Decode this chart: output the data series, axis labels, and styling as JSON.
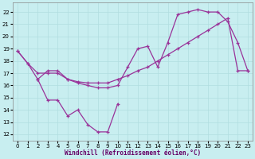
{
  "xlabel": "Windchill (Refroidissement éolien,°C)",
  "background_color": "#c8eef0",
  "grid_color": "#b0dde0",
  "line_color": "#993399",
  "ylim": [
    11.5,
    22.8
  ],
  "xlim": [
    -0.5,
    23.5
  ],
  "yticks": [
    12,
    13,
    14,
    15,
    16,
    17,
    18,
    19,
    20,
    21,
    22
  ],
  "xticks": [
    0,
    1,
    2,
    3,
    4,
    5,
    6,
    7,
    8,
    9,
    10,
    11,
    12,
    13,
    14,
    15,
    16,
    17,
    18,
    19,
    20,
    21,
    22,
    23
  ],
  "line1_x": [
    0,
    1,
    2,
    3,
    4,
    5,
    6,
    7,
    8,
    9,
    10,
    11,
    12,
    13,
    14,
    15,
    16,
    17,
    18,
    19,
    20,
    21,
    22,
    23
  ],
  "line1_y": [
    18.8,
    17.8,
    17.0,
    17.0,
    17.0,
    16.5,
    16.3,
    16.2,
    16.2,
    16.2,
    16.5,
    16.8,
    17.2,
    17.5,
    18.0,
    18.5,
    19.0,
    19.5,
    20.0,
    20.5,
    21.0,
    21.5,
    17.2,
    17.2
  ],
  "line2_x": [
    0,
    1,
    2,
    3,
    4,
    5,
    6,
    7,
    8,
    9,
    10,
    11,
    12,
    13,
    14,
    15,
    16,
    17,
    18,
    19,
    20,
    21,
    22,
    23
  ],
  "line2_y": [
    18.8,
    17.8,
    16.5,
    17.2,
    17.2,
    16.5,
    16.2,
    16.0,
    15.8,
    15.8,
    16.0,
    17.5,
    19.0,
    19.2,
    17.5,
    19.5,
    21.8,
    22.0,
    22.2,
    22.0,
    22.0,
    21.2,
    19.5,
    17.2
  ],
  "line3_x": [
    2,
    3,
    4,
    5,
    6,
    7,
    8,
    9,
    10
  ],
  "line3_y": [
    16.5,
    14.8,
    14.8,
    13.5,
    14.0,
    12.8,
    12.2,
    12.2,
    14.5
  ]
}
